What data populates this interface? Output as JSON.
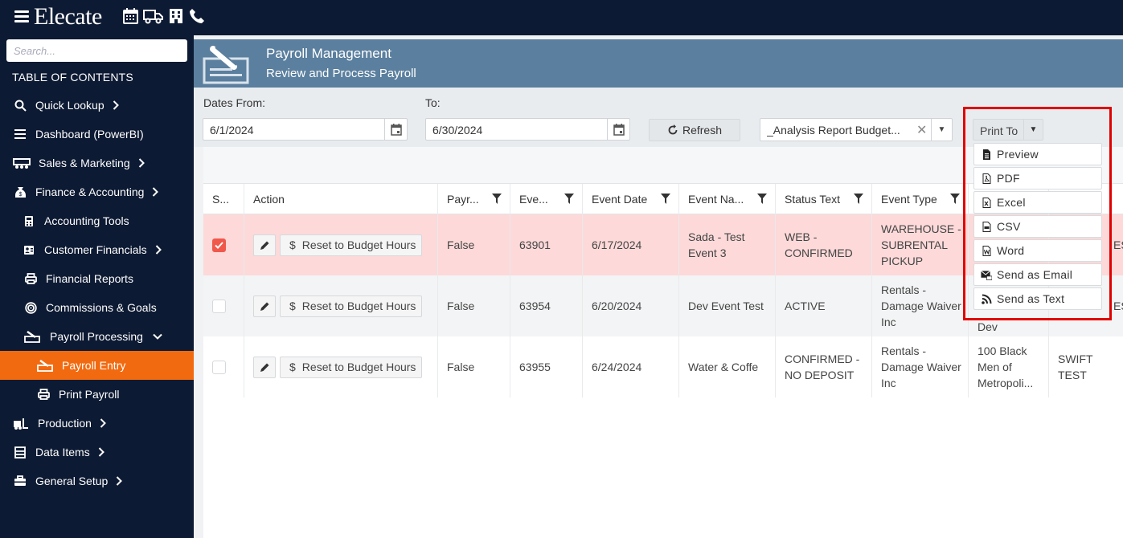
{
  "app": {
    "brand": "Elecate",
    "top_icons": [
      "calendar-icon",
      "truck-icon",
      "building-icon",
      "phone-icon"
    ]
  },
  "sidebar": {
    "search_placeholder": "Search...",
    "toc_label": "TABLE OF CONTENTS",
    "items": [
      {
        "label": "Quick Lookup",
        "icon": "search-icon",
        "chevron": "right"
      },
      {
        "label": "Dashboard (PowerBI)",
        "icon": "list-icon"
      },
      {
        "label": "Sales & Marketing",
        "icon": "people-icon",
        "chevron": "right"
      },
      {
        "label": "Finance & Accounting",
        "icon": "money-bag-icon",
        "chevron": "right"
      },
      {
        "label": "Accounting Tools",
        "icon": "calculator-icon"
      },
      {
        "label": "Customer Financials",
        "icon": "id-card-icon",
        "chevron": "right"
      },
      {
        "label": "Financial Reports",
        "icon": "printer-icon"
      },
      {
        "label": "Commissions & Goals",
        "icon": "target-icon"
      },
      {
        "label": "Payroll Processing",
        "icon": "payroll-icon",
        "chevron": "down"
      },
      {
        "label": "Payroll Entry",
        "icon": "payroll-entry-icon",
        "active": true
      },
      {
        "label": "Print Payroll",
        "icon": "printer-icon"
      },
      {
        "label": "Production",
        "icon": "forklift-icon",
        "chevron": "right"
      },
      {
        "label": "Data Items",
        "icon": "database-icon",
        "chevron": "right"
      },
      {
        "label": "General Setup",
        "icon": "toolbox-icon",
        "chevron": "right"
      }
    ]
  },
  "header": {
    "title": "Payroll Management",
    "subtitle": "Review and Process Payroll"
  },
  "filters": {
    "dates_from_label": "Dates From:",
    "date_from": "6/1/2024",
    "to_label": "To:",
    "date_to": "6/30/2024",
    "refresh_label": "Refresh",
    "report_value": "_Analysis Report Budget...",
    "print_to_label": "Print To"
  },
  "print_menu": {
    "items": [
      {
        "label": "Preview",
        "icon": "document-icon"
      },
      {
        "label": "PDF",
        "icon": "pdf-icon"
      },
      {
        "label": "Excel",
        "icon": "excel-icon"
      },
      {
        "label": "CSV",
        "icon": "csv-icon"
      },
      {
        "label": "Word",
        "icon": "word-icon"
      },
      {
        "label": "Send as Email",
        "icon": "email-icon"
      },
      {
        "label": "Send as Text",
        "icon": "rss-icon"
      }
    ]
  },
  "grid": {
    "columns": [
      {
        "label": "S..."
      },
      {
        "label": "Action"
      },
      {
        "label": "Payr...",
        "filter": true
      },
      {
        "label": "Eve...",
        "filter": true
      },
      {
        "label": "Event Date",
        "filter": true
      },
      {
        "label": "Event Na...",
        "filter": true
      },
      {
        "label": "Status Text",
        "filter": true
      },
      {
        "label": "Event Type",
        "filter": true
      },
      {
        "label": "",
        "filter": false
      },
      {
        "label": "..."
      }
    ],
    "reset_label": "Reset to Budget Hours",
    "rows": [
      {
        "selected": true,
        "payr": "False",
        "event_no": "63901",
        "event_date": "6/17/2024",
        "event_name": "Sada - Test Event 3",
        "status": "WEB - CONFIRMED",
        "event_type": "WAREHOUSE - SUBRENTAL PICKUP",
        "col9": "",
        "col10": "EST"
      },
      {
        "selected": false,
        "payr": "False",
        "event_no": "63954",
        "event_date": "6/20/2024",
        "event_name": "Dev Event Test",
        "status": "ACTIVE",
        "event_type": "Rentals - Damage Waiver Inc",
        "col9": "Dev",
        "col10": "EST"
      },
      {
        "selected": false,
        "payr": "False",
        "event_no": "63955",
        "event_date": "6/24/2024",
        "event_name": "Water & Coffe",
        "status": "CONFIRMED - NO DEPOSIT",
        "event_type": "Rentals - Damage Waiver Inc",
        "col9": "100 Black Men of Metropoli...",
        "col10": "SWIFT TEST"
      }
    ]
  },
  "colors": {
    "nav_bg": "#0d1a33",
    "active_item": "#f26a10",
    "header_bg": "#5b7f9e",
    "selected_row": "#fdd9d9",
    "highlight_border": "#e00000"
  }
}
